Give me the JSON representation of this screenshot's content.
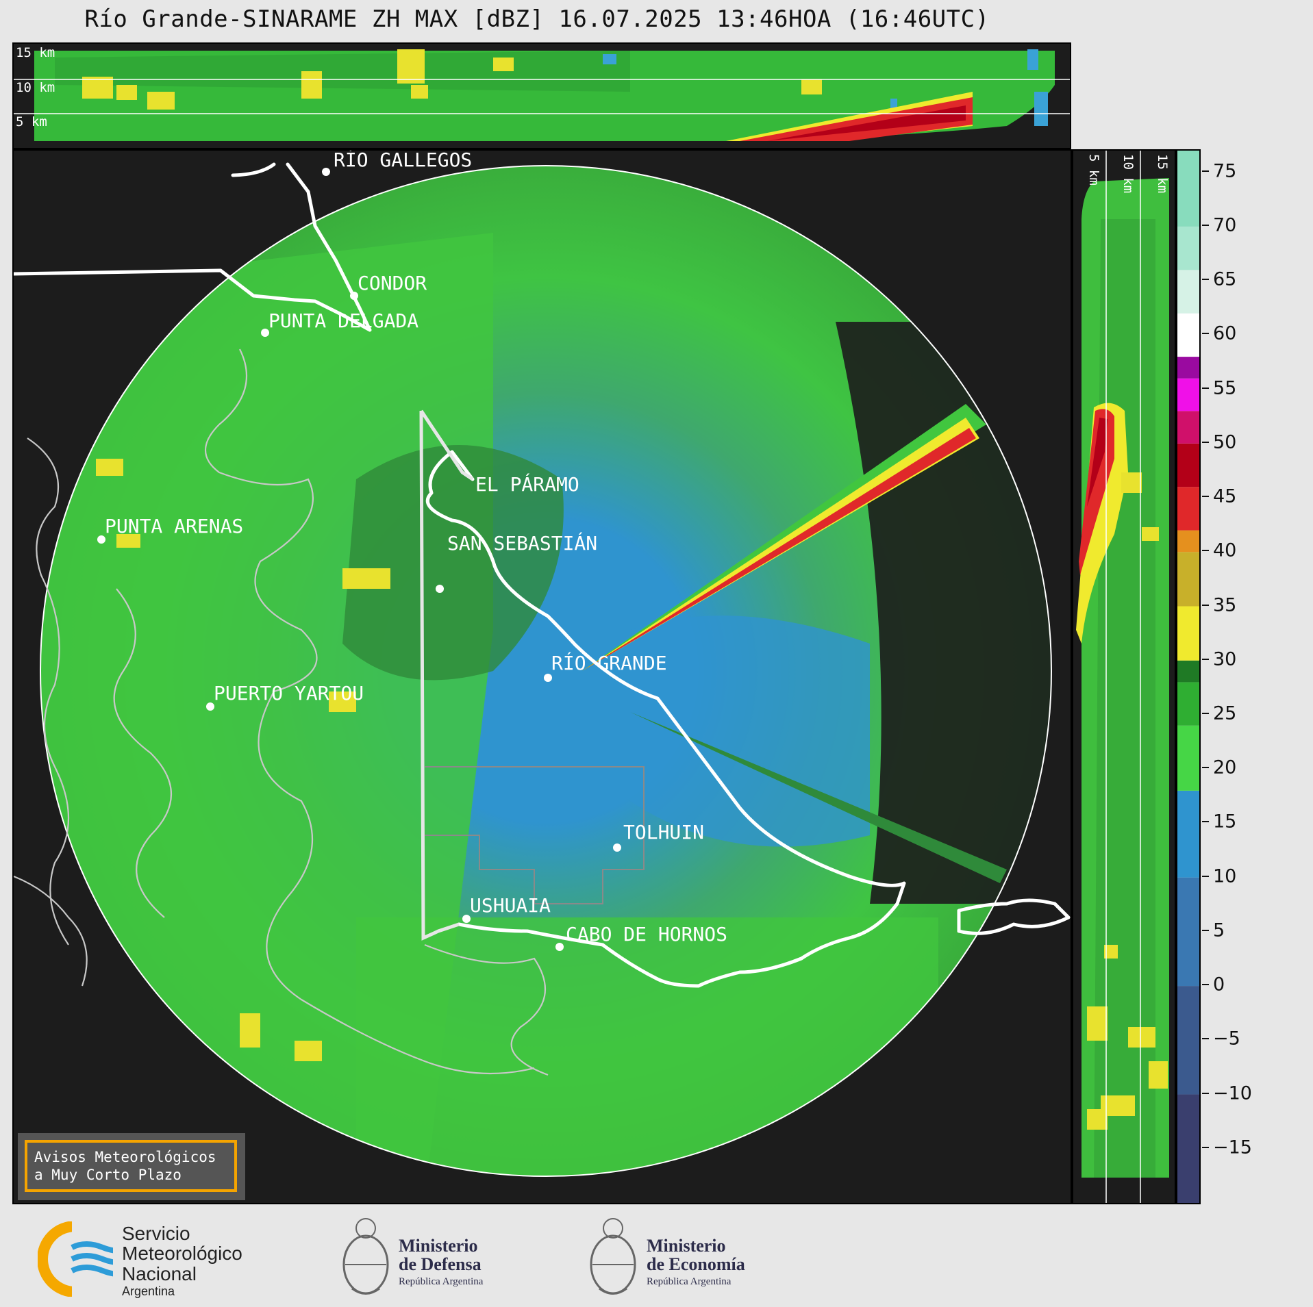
{
  "title": "Río Grande-SINARAME ZH MAX [dBZ] 16.07.2025 13:46HOA (16:46UTC)",
  "top_panel": {
    "height_labels": [
      "15 km",
      "10 km",
      "5 km"
    ]
  },
  "side_panel": {
    "height_labels": [
      "5 km",
      "10 km",
      "15 km"
    ]
  },
  "cities": [
    {
      "name": "RÍO GALLEGOS"
    },
    {
      "name": "CONDOR"
    },
    {
      "name": "PUNTA DELGADA"
    },
    {
      "name": "EL PÁRAMO"
    },
    {
      "name": "SAN SEBASTIÁN"
    },
    {
      "name": "PUNTA ARENAS"
    },
    {
      "name": "RÍO GRANDE"
    },
    {
      "name": "PUERTO YARTOU"
    },
    {
      "name": "TOLHUIN"
    },
    {
      "name": "USHUAIA"
    },
    {
      "name": "CABO DE HORNOS"
    }
  ],
  "colorbar": {
    "unit": "dBZ",
    "range": [
      -20,
      77
    ],
    "ticks": [
      "75",
      "70",
      "65",
      "60",
      "55",
      "50",
      "45",
      "40",
      "35",
      "30",
      "25",
      "20",
      "15",
      "10",
      "5",
      "0",
      "−5",
      "−10",
      "−15"
    ],
    "tick_values": [
      75,
      70,
      65,
      60,
      55,
      50,
      45,
      40,
      35,
      30,
      25,
      20,
      15,
      10,
      5,
      0,
      -5,
      -10,
      -15
    ],
    "color_stops": [
      {
        "from": -20,
        "color": "#3a3f6e"
      },
      {
        "from": -10,
        "color": "#3b5a8e"
      },
      {
        "from": 0,
        "color": "#3a78b2"
      },
      {
        "from": 10,
        "color": "#2f94cf"
      },
      {
        "from": 18,
        "color": "#46d646"
      },
      {
        "from": 24,
        "color": "#2fae32"
      },
      {
        "from": 28,
        "color": "#1f7a25"
      },
      {
        "from": 30,
        "color": "#f0ea2e"
      },
      {
        "from": 35,
        "color": "#c8b02a"
      },
      {
        "from": 40,
        "color": "#e5901e"
      },
      {
        "from": 42,
        "color": "#e0282a"
      },
      {
        "from": 46,
        "color": "#b30018"
      },
      {
        "from": 50,
        "color": "#d0106a"
      },
      {
        "from": 53,
        "color": "#f010e8"
      },
      {
        "from": 56,
        "color": "#9a0aa0"
      },
      {
        "from": 58,
        "color": "#ffffff"
      },
      {
        "from": 62,
        "color": "#d6f2e6"
      },
      {
        "from": 66,
        "color": "#a8e6cf"
      },
      {
        "from": 70,
        "color": "#88dcbd"
      }
    ]
  },
  "notice": {
    "line1": "Avisos Meteorológicos",
    "line2": "a Muy Corto Plazo",
    "border_color": "#f5a400"
  },
  "logos": {
    "smn": {
      "line1": "Servicio",
      "line2": "Meteorológico",
      "line3": "Nacional",
      "line4": "Argentina"
    },
    "defensa": {
      "line1": "Ministerio",
      "line2": "de Defensa",
      "line3": "República Argentina"
    },
    "economia": {
      "line1": "Ministerio",
      "line2": "de Economía",
      "line3": "República Argentina"
    }
  }
}
